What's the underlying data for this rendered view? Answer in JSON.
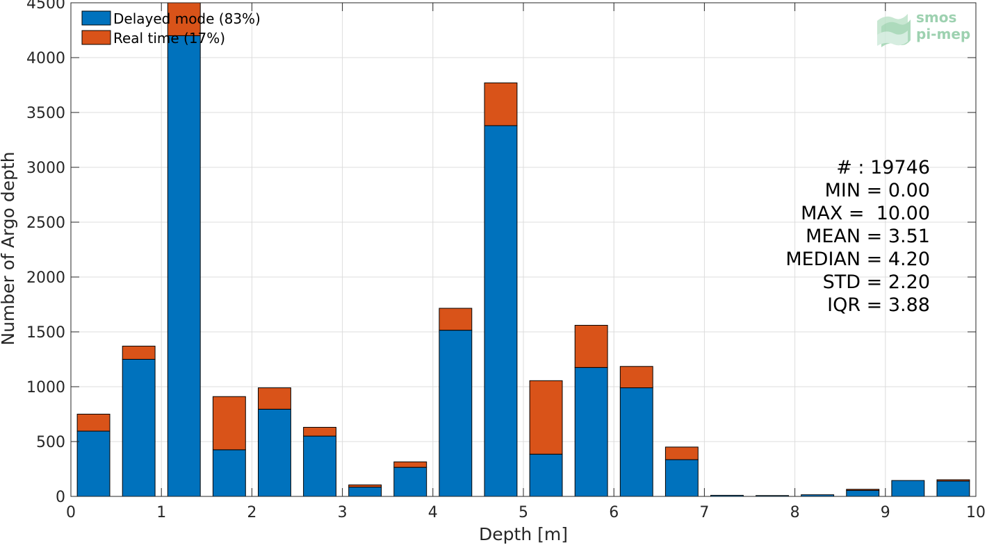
{
  "chart_data": {
    "type": "bar",
    "stacked": true,
    "title": "",
    "xlabel": "Depth [m]",
    "ylabel": "Number of Argo depth",
    "xlim": [
      0,
      10
    ],
    "ylim": [
      0,
      4500
    ],
    "xticks": [
      "0",
      "1",
      "2",
      "3",
      "4",
      "5",
      "6",
      "7",
      "8",
      "9",
      "10"
    ],
    "yticks": [
      "0",
      "500",
      "1000",
      "1500",
      "2000",
      "2500",
      "3000",
      "3500",
      "4000",
      "4500"
    ],
    "grid": true,
    "legend_position": "top-left",
    "bin_width": 0.5,
    "x": [
      0.25,
      0.75,
      1.25,
      1.75,
      2.25,
      2.75,
      3.25,
      3.75,
      4.25,
      4.75,
      5.25,
      5.75,
      6.25,
      6.75,
      7.25,
      7.75,
      8.25,
      8.75,
      9.25,
      9.75
    ],
    "series": [
      {
        "name": "Delayed mode (83%)",
        "color": "#0072BD",
        "values": [
          595,
          1250,
          4200,
          425,
          795,
          550,
          85,
          265,
          1515,
          3380,
          385,
          1175,
          990,
          335,
          10,
          8,
          15,
          55,
          145,
          140
        ]
      },
      {
        "name": "Real time (17%)",
        "color": "#D95319",
        "values": [
          155,
          120,
          300,
          485,
          195,
          80,
          20,
          50,
          200,
          390,
          670,
          385,
          195,
          115,
          0,
          0,
          0,
          10,
          0,
          12
        ]
      }
    ],
    "stats": [
      "# : 19746",
      "MIN = 0.00",
      "MAX =  10.00",
      "MEAN = 3.51",
      "MEDIAN = 4.20",
      "STD = 2.20",
      "IQR = 3.88"
    ]
  },
  "logo": {
    "line1": "smos",
    "line2": "pi-mep",
    "color": "#8dc9a3"
  }
}
